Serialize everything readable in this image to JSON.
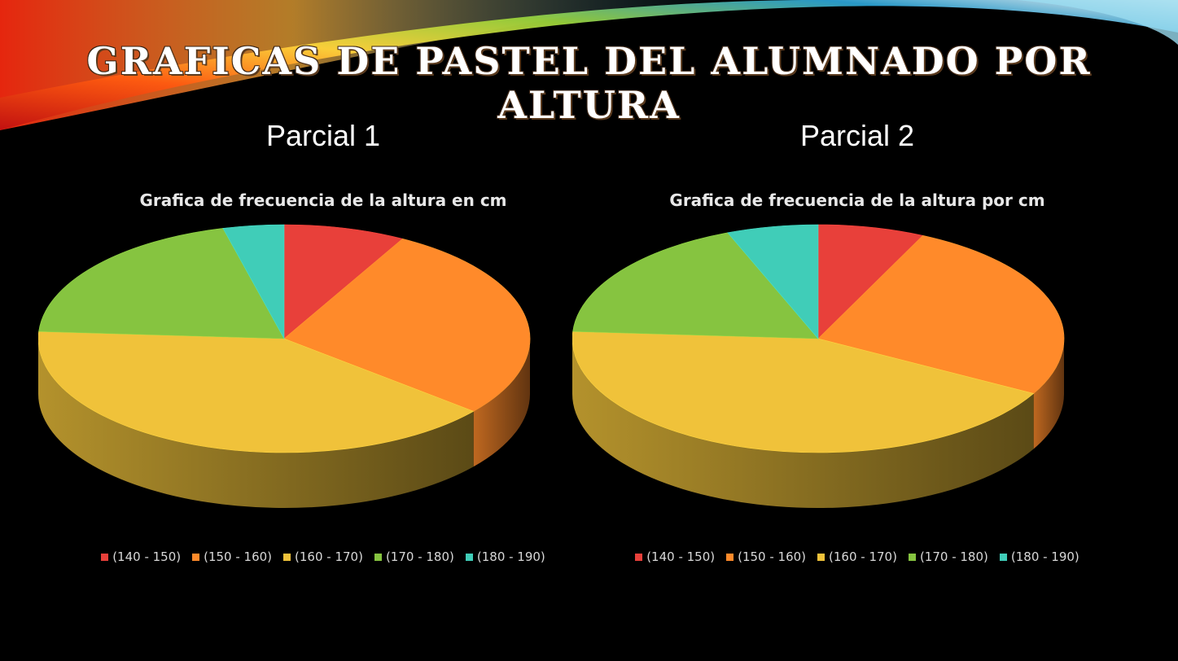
{
  "slide": {
    "title": "Graficas de pastel del alumnado por altura"
  },
  "chart_data": [
    {
      "type": "pie",
      "heading": "Parcial 1",
      "title": "Grafica de frecuencia de la altura en cm",
      "categories": [
        "(140 - 150)",
        "(150 - 160)",
        "(160 - 170)",
        "(170 - 180)",
        "(180 - 190)"
      ],
      "values": [
        8,
        28,
        40,
        20,
        4
      ],
      "colors": [
        "#e8403a",
        "#ff8a2a",
        "#f0c23a",
        "#86c440",
        "#40cdb8"
      ],
      "legend_position": "bottom"
    },
    {
      "type": "pie",
      "heading": "Parcial 2",
      "title": "Grafica de frecuencia de la altura por cm",
      "categories": [
        "(140 - 150)",
        "(150 - 160)",
        "(160 - 170)",
        "(170 - 180)",
        "(180 - 190)"
      ],
      "values": [
        7,
        26,
        43,
        18,
        6
      ],
      "colors": [
        "#e8403a",
        "#ff8a2a",
        "#f0c23a",
        "#86c440",
        "#40cdb8"
      ],
      "legend_position": "bottom"
    }
  ]
}
